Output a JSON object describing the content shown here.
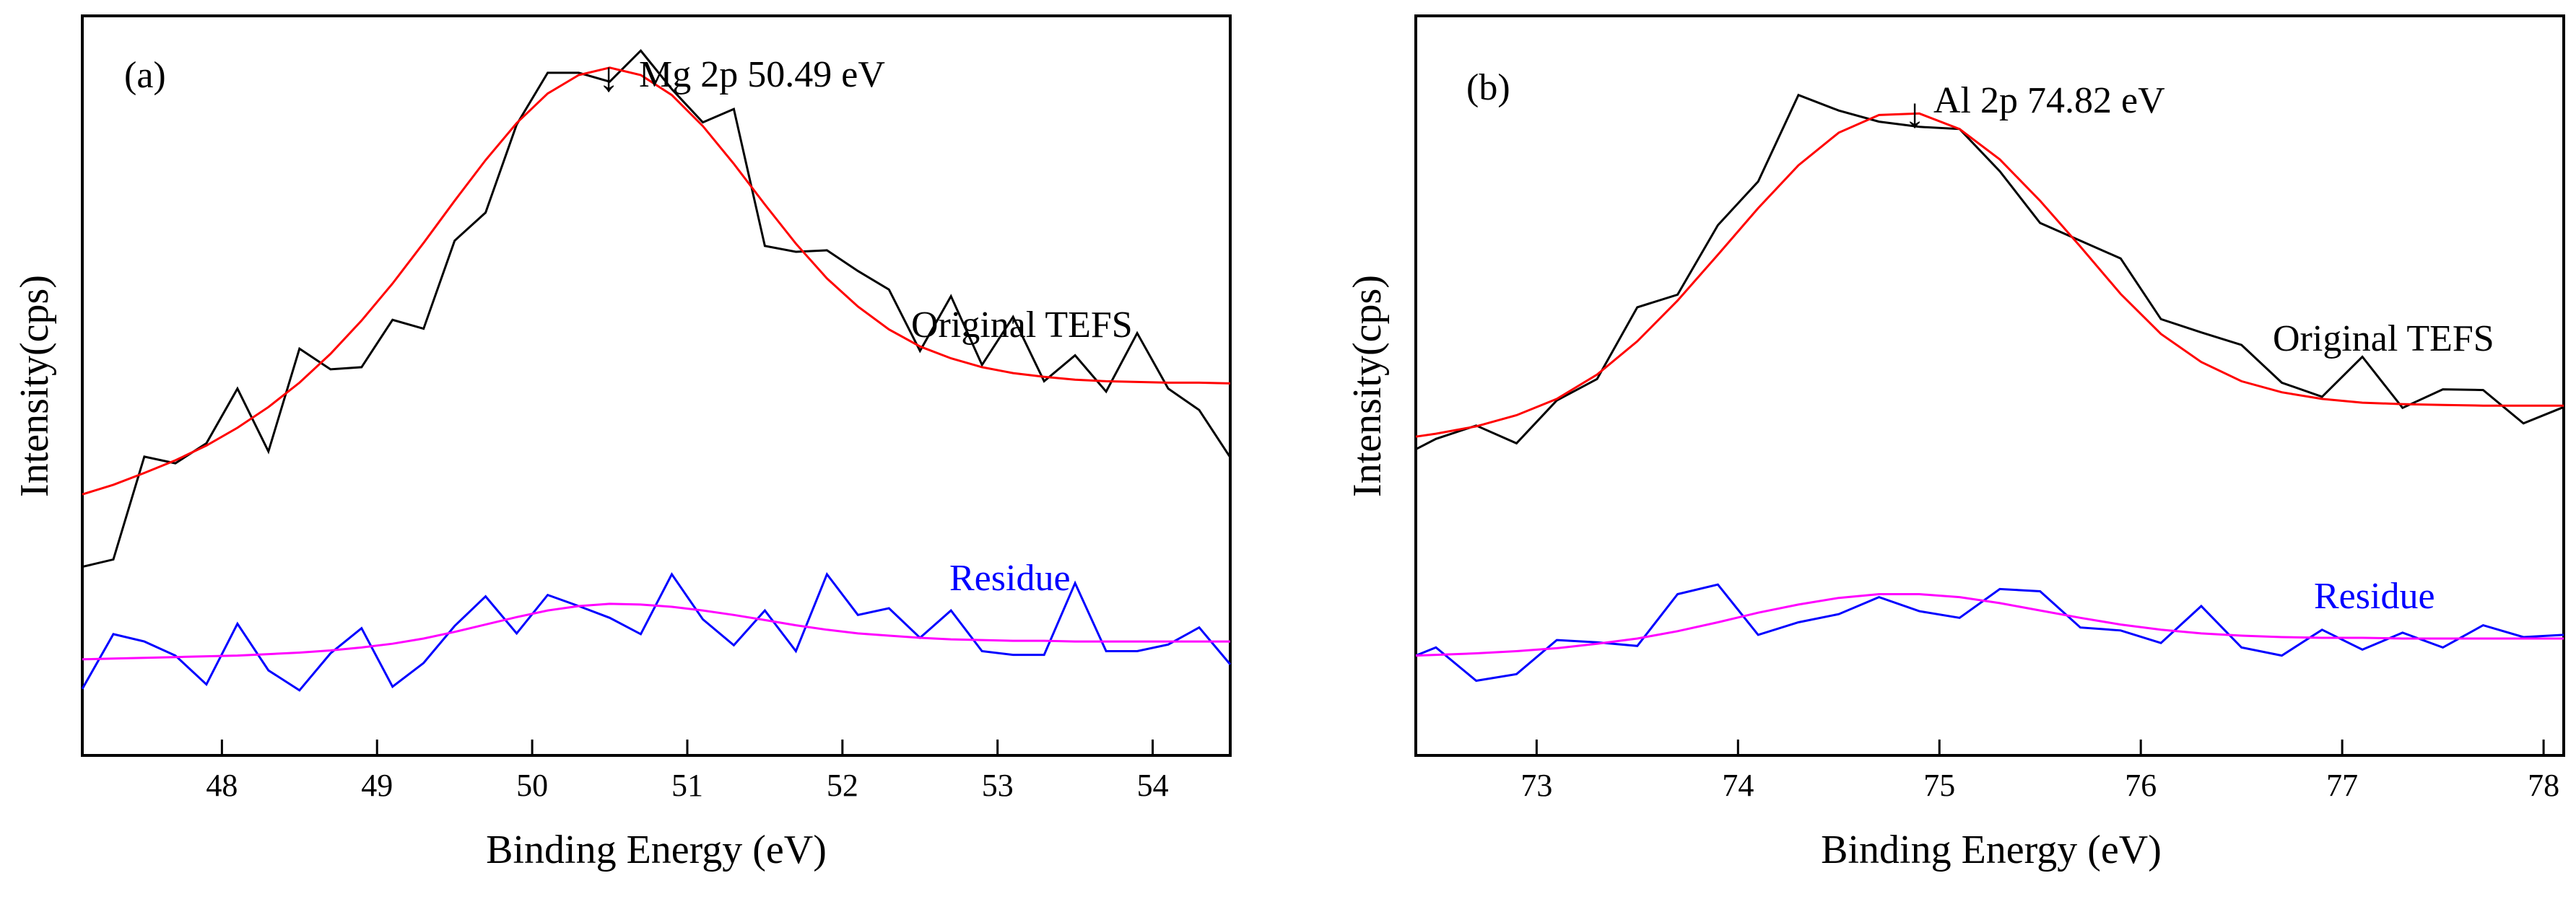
{
  "colors": {
    "original": "#000000",
    "fit": "#ff0000",
    "residue": "#0000ff",
    "residue_fit": "#ff00ff",
    "residue_label": "#0000ff",
    "axis": "#000000"
  },
  "chart_data": [
    {
      "type": "line",
      "panel_label": "(a)",
      "title": "",
      "xlabel": "Binding Energy (eV)",
      "ylabel": "Intensity(cps)",
      "xlim": [
        47.1,
        54.5
      ],
      "ylim": [
        0,
        100
      ],
      "xticks": [
        48,
        49,
        50,
        51,
        52,
        53,
        54
      ],
      "xtick_labels": [
        "48",
        "49",
        "50",
        "51",
        "52",
        "53",
        "54"
      ],
      "yticks_labeled": false,
      "annotations": {
        "peak": {
          "text": "Mg 2p 50.49 eV",
          "arrow": "↓",
          "x": 50.49
        },
        "original_label": "Original TEFS",
        "residue_label": "Residue"
      },
      "series": [
        {
          "name": "Original TEFS",
          "color_key": "original",
          "x": [
            47.1,
            47.3,
            47.5,
            47.7,
            47.9,
            48.1,
            48.3,
            48.5,
            48.7,
            48.9,
            49.1,
            49.3,
            49.5,
            49.7,
            49.9,
            50.1,
            50.3,
            50.5,
            50.7,
            50.9,
            51.1,
            51.3,
            51.5,
            51.7,
            51.9,
            52.1,
            52.3,
            52.5,
            52.7,
            52.9,
            53.1,
            53.3,
            53.5,
            53.7,
            53.9,
            54.1,
            54.3,
            54.5
          ],
          "y": [
            25.5,
            26.5,
            40.4,
            39.5,
            42.2,
            49.6,
            41.1,
            55.0,
            52.2,
            52.5,
            58.9,
            57.7,
            69.6,
            73.4,
            85.3,
            92.3,
            92.3,
            91.1,
            95.3,
            90.1,
            85.6,
            87.4,
            68.9,
            68.1,
            68.3,
            65.5,
            63.0,
            54.7,
            62.1,
            52.8,
            59.3,
            50.6,
            54.1,
            49.2,
            57.1,
            49.6,
            46.7,
            40.3
          ]
        },
        {
          "name": "Fit",
          "color_key": "fit",
          "x": [
            47.1,
            47.3,
            47.5,
            47.7,
            47.9,
            48.1,
            48.3,
            48.5,
            48.7,
            48.9,
            49.1,
            49.3,
            49.5,
            49.7,
            49.9,
            50.1,
            50.3,
            50.5,
            50.7,
            50.9,
            51.1,
            51.3,
            51.5,
            51.7,
            51.9,
            52.1,
            52.3,
            52.5,
            52.7,
            52.9,
            53.1,
            53.3,
            53.5,
            53.7,
            53.9,
            54.1,
            54.3,
            54.5
          ],
          "y": [
            35.3,
            36.6,
            38.2,
            39.9,
            41.9,
            44.3,
            47.1,
            50.4,
            54.3,
            58.8,
            63.8,
            69.3,
            75.0,
            80.5,
            85.5,
            89.5,
            92.0,
            93.0,
            92.0,
            89.3,
            85.1,
            80.0,
            74.5,
            69.2,
            64.5,
            60.7,
            57.6,
            55.3,
            53.7,
            52.5,
            51.7,
            51.2,
            50.8,
            50.6,
            50.5,
            50.4,
            50.4,
            50.3
          ]
        },
        {
          "name": "Residue",
          "color_key": "residue",
          "x": [
            47.1,
            47.3,
            47.5,
            47.7,
            47.9,
            48.1,
            48.3,
            48.5,
            48.7,
            48.9,
            49.1,
            49.3,
            49.5,
            49.7,
            49.9,
            50.1,
            50.3,
            50.5,
            50.7,
            50.9,
            51.1,
            51.3,
            51.5,
            51.7,
            51.9,
            52.1,
            52.3,
            52.5,
            52.7,
            52.9,
            53.1,
            53.3,
            53.5,
            53.7,
            53.9,
            54.1,
            54.3,
            54.5
          ],
          "y": [
            9.0,
            16.4,
            15.4,
            13.5,
            9.6,
            17.8,
            11.5,
            8.8,
            13.8,
            17.2,
            9.3,
            12.5,
            17.5,
            21.5,
            16.5,
            21.7,
            20.2,
            18.6,
            16.4,
            24.5,
            18.4,
            14.9,
            19.6,
            14.1,
            24.5,
            19.0,
            19.9,
            15.9,
            19.6,
            14.1,
            13.6,
            13.6,
            23.3,
            14.1,
            14.1,
            15.0,
            17.3,
            12.3
          ]
        },
        {
          "name": "Residue fit",
          "color_key": "residue_fit",
          "x": [
            47.1,
            47.3,
            47.5,
            47.7,
            47.9,
            48.1,
            48.3,
            48.5,
            48.7,
            48.9,
            49.1,
            49.3,
            49.5,
            49.7,
            49.9,
            50.1,
            50.3,
            50.5,
            50.7,
            50.9,
            51.1,
            51.3,
            51.5,
            51.7,
            51.9,
            52.1,
            52.3,
            52.5,
            52.7,
            52.9,
            53.1,
            53.3,
            53.5,
            53.7,
            53.9,
            54.1,
            54.3,
            54.5
          ],
          "y": [
            13.0,
            13.1,
            13.2,
            13.3,
            13.4,
            13.5,
            13.7,
            13.9,
            14.2,
            14.6,
            15.1,
            15.8,
            16.7,
            17.7,
            18.7,
            19.6,
            20.2,
            20.5,
            20.4,
            20.1,
            19.6,
            19.0,
            18.3,
            17.6,
            17.0,
            16.5,
            16.2,
            15.9,
            15.7,
            15.6,
            15.5,
            15.5,
            15.4,
            15.4,
            15.4,
            15.4,
            15.4,
            15.4
          ]
        }
      ]
    },
    {
      "type": "line",
      "panel_label": "(b)",
      "title": "",
      "xlabel": "Binding Energy (eV)",
      "ylabel": "Intensity(cps)",
      "xlim": [
        72.4,
        78.1
      ],
      "ylim": [
        0,
        100
      ],
      "xticks": [
        73,
        74,
        75,
        76,
        77,
        78
      ],
      "xtick_labels": [
        "73",
        "74",
        "75",
        "76",
        "77",
        "78"
      ],
      "yticks_labeled": false,
      "annotations": {
        "peak": {
          "text": "Al 2p 74.82 eV",
          "arrow": "↓",
          "x": 74.82
        },
        "original_label": "Original TEFS",
        "residue_label": "Residue"
      },
      "series": [
        {
          "name": "Original TEFS",
          "color_key": "original",
          "x": [
            72.4,
            72.5,
            72.7,
            72.9,
            73.1,
            73.3,
            73.5,
            73.7,
            73.9,
            74.1,
            74.3,
            74.5,
            74.7,
            74.9,
            75.1,
            75.3,
            75.5,
            75.7,
            75.9,
            76.1,
            76.3,
            76.5,
            76.7,
            76.9,
            77.1,
            77.3,
            77.5,
            77.7,
            77.9,
            78.1
          ],
          "y": [
            41.4,
            42.8,
            44.6,
            42.2,
            48.0,
            50.9,
            60.6,
            62.3,
            71.7,
            77.6,
            89.3,
            87.2,
            85.7,
            85.0,
            84.7,
            79.0,
            72.0,
            69.6,
            67.2,
            59.0,
            57.2,
            55.5,
            50.4,
            48.5,
            53.9,
            47.0,
            49.5,
            49.4,
            44.9,
            47.1
          ]
        },
        {
          "name": "Fit",
          "color_key": "fit",
          "x": [
            72.4,
            72.5,
            72.7,
            72.9,
            73.1,
            73.3,
            73.5,
            73.7,
            73.9,
            74.1,
            74.3,
            74.5,
            74.7,
            74.9,
            75.1,
            75.3,
            75.5,
            75.7,
            75.9,
            76.1,
            76.3,
            76.5,
            76.7,
            76.9,
            77.1,
            77.3,
            77.5,
            77.7,
            77.9,
            78.1
          ],
          "y": [
            43.1,
            43.5,
            44.5,
            46.0,
            48.2,
            51.5,
            56.0,
            61.5,
            67.7,
            74.0,
            79.8,
            84.2,
            86.6,
            86.8,
            84.7,
            80.6,
            75.0,
            68.8,
            62.4,
            57.0,
            53.2,
            50.6,
            49.1,
            48.2,
            47.7,
            47.5,
            47.4,
            47.3,
            47.3,
            47.3
          ]
        },
        {
          "name": "Residue",
          "color_key": "residue",
          "x": [
            72.4,
            72.5,
            72.7,
            72.9,
            73.1,
            73.3,
            73.5,
            73.7,
            73.9,
            74.1,
            74.3,
            74.5,
            74.7,
            74.9,
            75.1,
            75.3,
            75.5,
            75.7,
            75.9,
            76.1,
            76.3,
            76.5,
            76.7,
            76.9,
            77.1,
            77.3,
            77.5,
            77.7,
            77.9,
            78.1
          ],
          "y": [
            13.5,
            14.6,
            10.1,
            11.0,
            15.6,
            15.3,
            14.8,
            21.8,
            23.1,
            16.3,
            18.0,
            19.1,
            21.4,
            19.5,
            18.6,
            22.5,
            22.2,
            17.3,
            16.9,
            15.2,
            20.2,
            14.6,
            13.5,
            17.0,
            14.3,
            16.6,
            14.6,
            17.6,
            16.0,
            16.3
          ]
        },
        {
          "name": "Residue fit",
          "color_key": "residue_fit",
          "x": [
            72.4,
            72.5,
            72.7,
            72.9,
            73.1,
            73.3,
            73.5,
            73.7,
            73.9,
            74.1,
            74.3,
            74.5,
            74.7,
            74.9,
            75.1,
            75.3,
            75.5,
            75.7,
            75.9,
            76.1,
            76.3,
            76.5,
            76.7,
            76.9,
            77.1,
            77.3,
            77.5,
            77.7,
            77.9,
            78.1
          ],
          "y": [
            13.5,
            13.6,
            13.8,
            14.1,
            14.5,
            15.1,
            15.8,
            16.8,
            18.0,
            19.3,
            20.4,
            21.3,
            21.8,
            21.8,
            21.4,
            20.6,
            19.6,
            18.6,
            17.7,
            17.0,
            16.5,
            16.2,
            16.0,
            15.9,
            15.9,
            15.8,
            15.8,
            15.8,
            15.8,
            15.8
          ]
        }
      ]
    }
  ]
}
